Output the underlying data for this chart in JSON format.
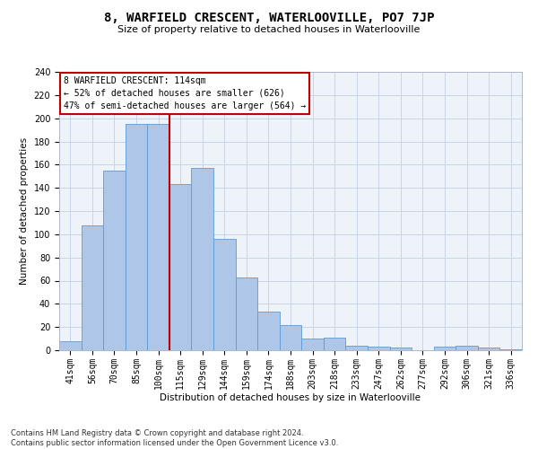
{
  "title": "8, WARFIELD CRESCENT, WATERLOOVILLE, PO7 7JP",
  "subtitle": "Size of property relative to detached houses in Waterlooville",
  "xlabel": "Distribution of detached houses by size in Waterlooville",
  "ylabel": "Number of detached properties",
  "footer_line1": "Contains HM Land Registry data © Crown copyright and database right 2024.",
  "footer_line2": "Contains public sector information licensed under the Open Government Licence v3.0.",
  "annotation_line1": "8 WARFIELD CRESCENT: 114sqm",
  "annotation_line2": "← 52% of detached houses are smaller (626)",
  "annotation_line3": "47% of semi-detached houses are larger (564) →",
  "bar_color": "#aec6e8",
  "bar_edge_color": "#5b9bd5",
  "vline_color": "#c00000",
  "annotation_box_color": "#c00000",
  "background_color": "#eef2f9",
  "categories": [
    "41sqm",
    "56sqm",
    "70sqm",
    "85sqm",
    "100sqm",
    "115sqm",
    "129sqm",
    "144sqm",
    "159sqm",
    "174sqm",
    "188sqm",
    "203sqm",
    "218sqm",
    "233sqm",
    "247sqm",
    "262sqm",
    "277sqm",
    "292sqm",
    "306sqm",
    "321sqm",
    "336sqm"
  ],
  "values": [
    8,
    108,
    155,
    195,
    195,
    143,
    157,
    96,
    63,
    33,
    22,
    10,
    11,
    4,
    3,
    2,
    0,
    3,
    4,
    2,
    1
  ],
  "ylim": [
    0,
    240
  ],
  "yticks": [
    0,
    20,
    40,
    60,
    80,
    100,
    120,
    140,
    160,
    180,
    200,
    220,
    240
  ],
  "vline_x_index": 4.5,
  "grid_color": "#c8d4e8",
  "title_fontsize": 10,
  "subtitle_fontsize": 8,
  "axis_label_fontsize": 7.5,
  "tick_fontsize": 7,
  "annotation_fontsize": 7,
  "footer_fontsize": 6
}
